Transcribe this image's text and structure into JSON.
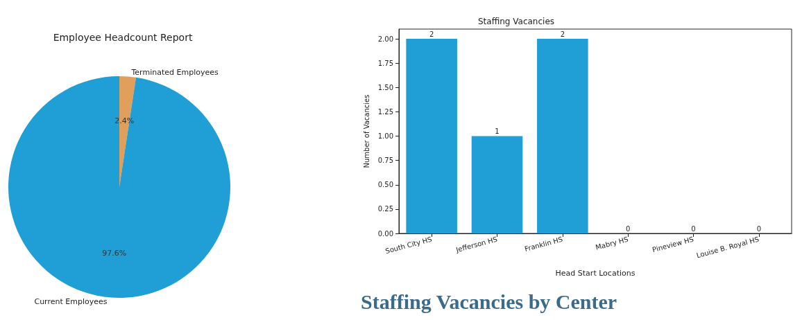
{
  "chart_data": [
    {
      "type": "pie",
      "title": "Employee Headcount Report",
      "categories": [
        "Terminated Employees",
        "Current Employees"
      ],
      "values": [
        2.4,
        97.6
      ],
      "value_labels": [
        "2.4%",
        "97.6%"
      ],
      "colors": [
        "#e0a05c",
        "#1f9fd5"
      ]
    },
    {
      "type": "bar",
      "title": "Staffing Vacancies",
      "xlabel": "Head Start Locations",
      "ylabel": "Number of Vacancies",
      "categories": [
        "South City HS",
        "Jefferson HS",
        "Franklin HS",
        "Mabry HS",
        "Pineview HS",
        "Louise B. Royal HS"
      ],
      "values": [
        2,
        1,
        2,
        0,
        0,
        0
      ],
      "color": "#1f9fd5",
      "ylim": [
        0,
        2.1
      ],
      "yticks": [
        {
          "value": 0,
          "label": "0.00"
        },
        {
          "value": 0.25,
          "label": "0.25"
        },
        {
          "value": 0.5,
          "label": "0.50"
        },
        {
          "value": 0.75,
          "label": "0.75"
        },
        {
          "value": 1,
          "label": "1.00"
        },
        {
          "value": 1.25,
          "label": "1.25"
        },
        {
          "value": 1.5,
          "label": "1.50"
        },
        {
          "value": 1.75,
          "label": "1.75"
        },
        {
          "value": 2,
          "label": "2.00"
        }
      ],
      "data_labels": true,
      "grid": false,
      "annotations": [
        "Staffing Vacancies by Center"
      ]
    }
  ]
}
